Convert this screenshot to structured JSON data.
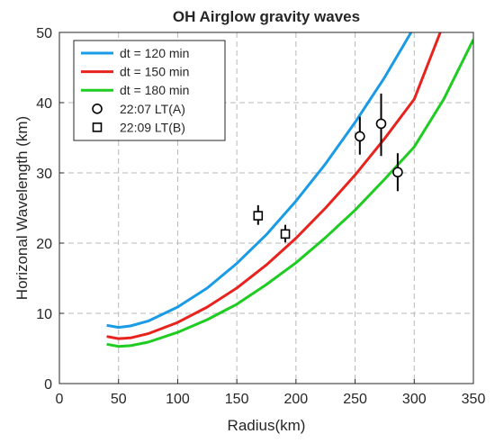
{
  "chart_data": {
    "type": "line",
    "title": "OH Airglow gravity waves",
    "xlabel": "Radius(km)",
    "ylabel": "Horizonal Wavelength (km)",
    "xlim": [
      0,
      350
    ],
    "ylim": [
      0,
      50
    ],
    "x_ticks": [
      "0",
      "50",
      "100",
      "150",
      "200",
      "250",
      "300",
      "350"
    ],
    "y_ticks": [
      "0",
      "10",
      "20",
      "30",
      "40",
      "50"
    ],
    "grid": true,
    "legend_position": "top-left",
    "series": [
      {
        "name": "dt = 120 min",
        "color": "#1a9be6",
        "points": [
          [
            40,
            8.3
          ],
          [
            50,
            8.0
          ],
          [
            60,
            8.2
          ],
          [
            75,
            8.9
          ],
          [
            100,
            10.9
          ],
          [
            125,
            13.6
          ],
          [
            150,
            17.1
          ],
          [
            175,
            21.2
          ],
          [
            200,
            26.0
          ],
          [
            225,
            31.3
          ],
          [
            250,
            37.2
          ],
          [
            275,
            43.6
          ],
          [
            298,
            50.2
          ]
        ]
      },
      {
        "name": "dt = 150 min",
        "color": "#e8231d",
        "points": [
          [
            40,
            6.7
          ],
          [
            50,
            6.4
          ],
          [
            60,
            6.5
          ],
          [
            75,
            7.1
          ],
          [
            100,
            8.7
          ],
          [
            125,
            10.9
          ],
          [
            150,
            13.6
          ],
          [
            175,
            16.9
          ],
          [
            200,
            20.7
          ],
          [
            225,
            25.0
          ],
          [
            250,
            29.7
          ],
          [
            275,
            34.9
          ],
          [
            300,
            40.5
          ],
          [
            322,
            50.0
          ]
        ]
      },
      {
        "name": "dt = 180 min",
        "color": "#1fcc21",
        "points": [
          [
            40,
            5.6
          ],
          [
            50,
            5.3
          ],
          [
            60,
            5.4
          ],
          [
            75,
            5.9
          ],
          [
            100,
            7.3
          ],
          [
            125,
            9.1
          ],
          [
            150,
            11.3
          ],
          [
            175,
            14.1
          ],
          [
            200,
            17.2
          ],
          [
            225,
            20.8
          ],
          [
            250,
            24.7
          ],
          [
            275,
            29.1
          ],
          [
            300,
            33.7
          ],
          [
            325,
            40.5
          ],
          [
            350,
            49.0
          ]
        ]
      }
    ],
    "observations": [
      {
        "name": "22:07 LT(A)",
        "marker": "circle",
        "points": [
          {
            "x": 254,
            "y": 35.2,
            "err_low": 32.6,
            "err_high": 38.0
          },
          {
            "x": 272,
            "y": 37.0,
            "err_low": 32.4,
            "err_high": 41.3
          },
          {
            "x": 286,
            "y": 30.1,
            "err_low": 27.4,
            "err_high": 32.8
          }
        ]
      },
      {
        "name": "22:09 LT(B)",
        "marker": "square",
        "points": [
          {
            "x": 168,
            "y": 23.9,
            "err_low": 22.6,
            "err_high": 25.4
          },
          {
            "x": 191,
            "y": 21.3,
            "err_low": 20.1,
            "err_high": 22.6
          }
        ]
      }
    ]
  }
}
